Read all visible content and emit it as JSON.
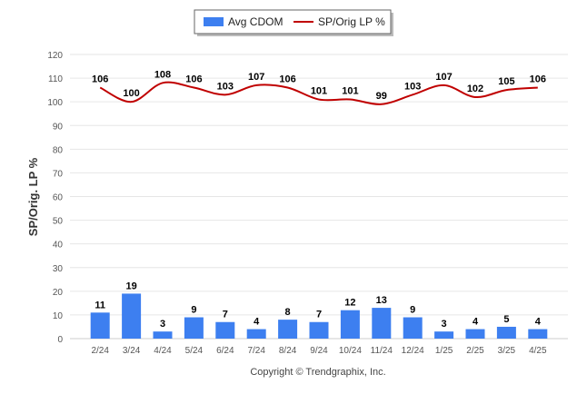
{
  "chart_data": {
    "type": "bar",
    "title": "",
    "xlabel": "",
    "ylabel": "SP/Orig. LP %",
    "ylim": [
      0,
      120
    ],
    "yticks": [
      0,
      10,
      20,
      30,
      40,
      50,
      60,
      70,
      80,
      90,
      100,
      110,
      120
    ],
    "grid": true,
    "legend_position": "top-center",
    "categories": [
      "2/24",
      "3/24",
      "4/24",
      "5/24",
      "6/24",
      "7/24",
      "8/24",
      "9/24",
      "10/24",
      "11/24",
      "12/24",
      "1/25",
      "2/25",
      "3/25",
      "4/25"
    ],
    "series": [
      {
        "name": "Avg CDOM",
        "kind": "bar",
        "color": "#3d7ff0",
        "values": [
          11,
          19,
          3,
          9,
          7,
          4,
          8,
          7,
          12,
          13,
          9,
          3,
          4,
          5,
          4
        ]
      },
      {
        "name": "SP/Orig LP %",
        "kind": "line",
        "color": "#c00000",
        "values": [
          106,
          100,
          108,
          106,
          103,
          107,
          106,
          101,
          101,
          99,
          103,
          107,
          102,
          105,
          106
        ]
      }
    ]
  },
  "footer": {
    "credit": "Copyright © Trendgraphix, Inc."
  }
}
